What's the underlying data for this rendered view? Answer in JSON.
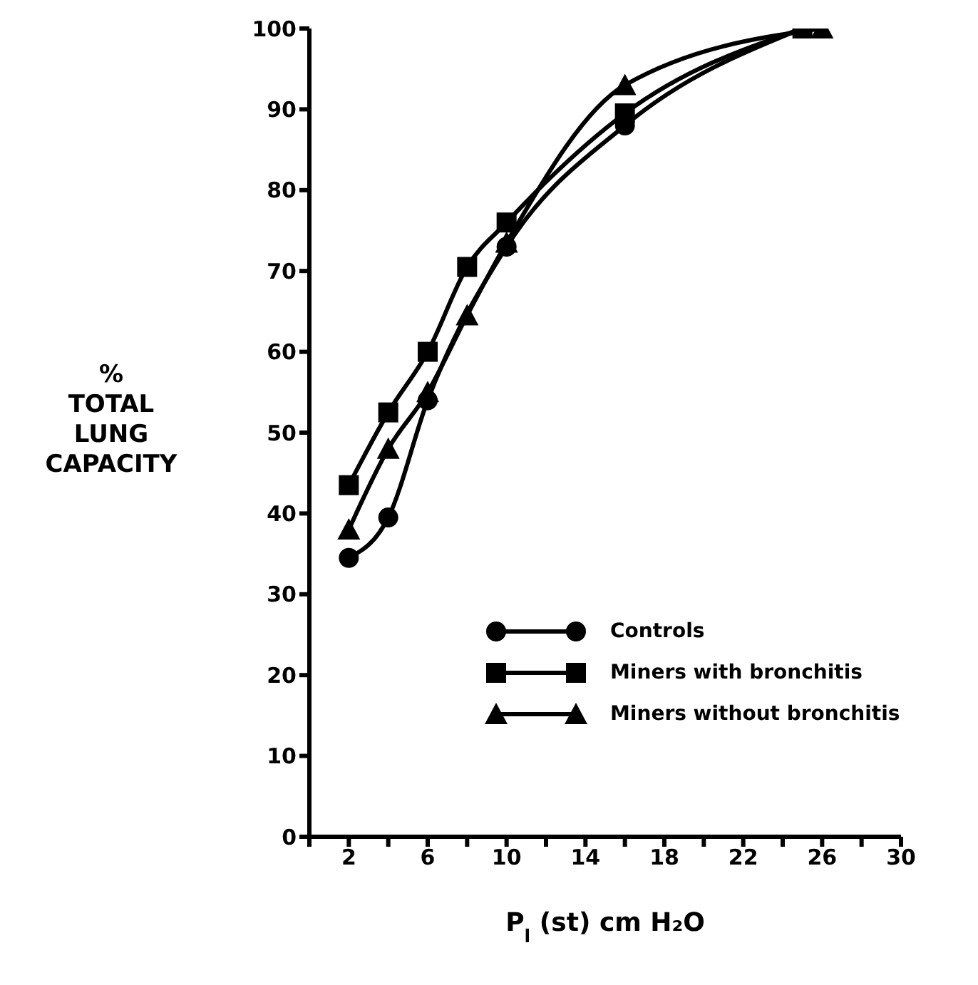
{
  "chart_data": {
    "type": "line",
    "xlabel": "P$_{l}$ (st) cm H₂O",
    "ylabel": "% TOTAL LUNG CAPACITY",
    "xlim": [
      0,
      30
    ],
    "xticks": [
      {
        "value": 0,
        "label": null
      },
      2,
      {
        "value": 4,
        "label": null
      },
      6,
      {
        "value": 8,
        "label": null
      },
      10,
      {
        "value": 12,
        "label": null
      },
      14,
      {
        "value": 16,
        "label": null
      },
      18,
      {
        "value": 20,
        "label": null
      },
      22,
      {
        "value": 24,
        "label": null
      },
      26,
      {
        "value": 28,
        "label": null
      },
      30
    ],
    "ylim": [
      0,
      100
    ],
    "yticks": [
      0,
      10,
      20,
      30,
      40,
      50,
      60,
      70,
      80,
      90,
      100
    ],
    "grid": false,
    "legend": "bottom right",
    "line_style": "solid",
    "series": [
      {
        "name": "Controls",
        "color": "#000000",
        "marker": "circle",
        "x": [
          2,
          4,
          6,
          10,
          16,
          25
        ],
        "values": [
          34.5,
          39.5,
          54,
          73,
          88,
          100
        ]
      },
      {
        "name": "Miners with bronchitis",
        "color": "#000000",
        "marker": "square",
        "x": [
          2,
          4,
          6,
          8,
          10,
          16,
          25
        ],
        "values": [
          43.5,
          52.5,
          60,
          70.5,
          76,
          89.5,
          100
        ]
      },
      {
        "name": "Miners without bronchitis",
        "color": "#000000",
        "marker": "triangle",
        "x": [
          2,
          4,
          6,
          8,
          10,
          16,
          26
        ],
        "values": [
          38,
          48,
          55,
          64.5,
          73.5,
          93,
          100
        ]
      }
    ]
  }
}
